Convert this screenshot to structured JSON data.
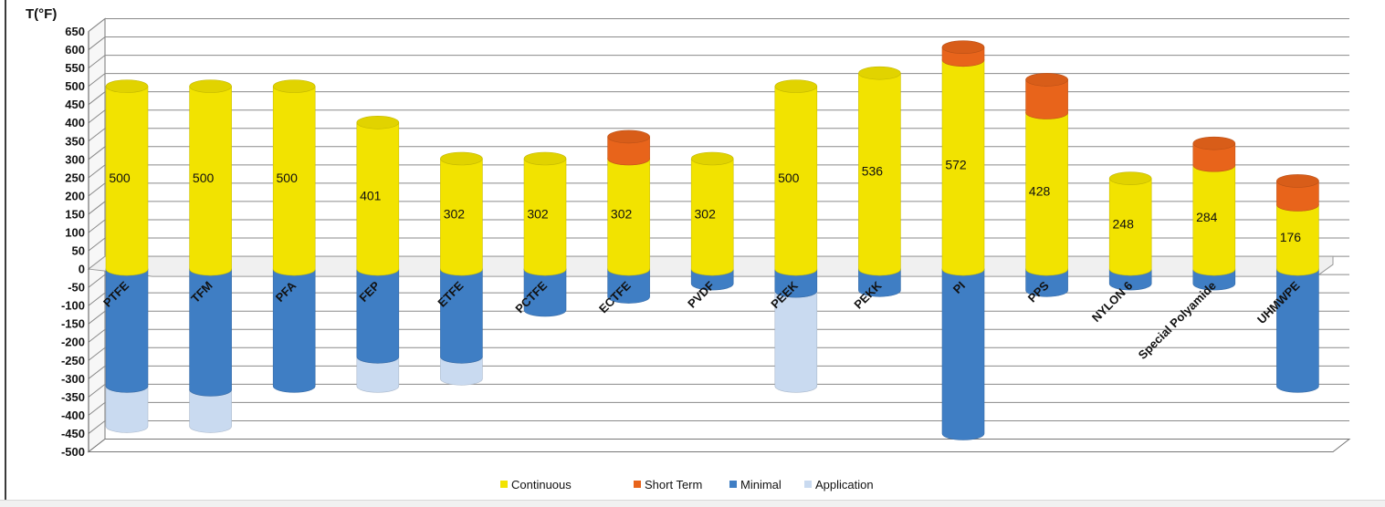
{
  "chart_data": {
    "type": "bar",
    "subtype": "3d-cylinder-stacked",
    "ylabel": "T(°F)",
    "ylim": [
      -500,
      650
    ],
    "ytick_step": 50,
    "grid": true,
    "legend_position": "bottom",
    "categories": [
      "PTFE",
      "TFM",
      "PFA",
      "FEP",
      "ETFE",
      "PCTFE",
      "ECTFE",
      "PVDF",
      "PEEK",
      "PEKK",
      "PI",
      "PPS",
      "NYLON 6",
      "Special Polyamide",
      "UHMWPE"
    ],
    "series": [
      {
        "name": "Continuous",
        "color": "#f2e300",
        "values": [
          500,
          500,
          500,
          401,
          302,
          302,
          302,
          302,
          500,
          536,
          572,
          428,
          248,
          284,
          176
        ]
      },
      {
        "name": "Short Term",
        "color": "#e8641b",
        "values": [
          0,
          0,
          0,
          0,
          0,
          0,
          60,
          0,
          0,
          0,
          35,
          90,
          0,
          60,
          65
        ]
      },
      {
        "name": "Minimal",
        "color": "#3f7ec4",
        "values": [
          -320,
          -330,
          -320,
          -240,
          -240,
          -112,
          -76,
          -40,
          -60,
          -58,
          -450,
          -58,
          -40,
          -40,
          -320
        ]
      },
      {
        "name": "Application",
        "color": "#c9daf0",
        "values": [
          -430,
          -430,
          -320,
          -320,
          -300,
          -112,
          -76,
          -40,
          -320,
          -58,
          -450,
          -58,
          -40,
          -40,
          -320
        ]
      }
    ],
    "data_labels": [
      "500",
      "500",
      "500",
      "401",
      "302",
      "302",
      "302",
      "302",
      "500",
      "536",
      "572",
      "428",
      "248",
      "284",
      "176"
    ]
  }
}
